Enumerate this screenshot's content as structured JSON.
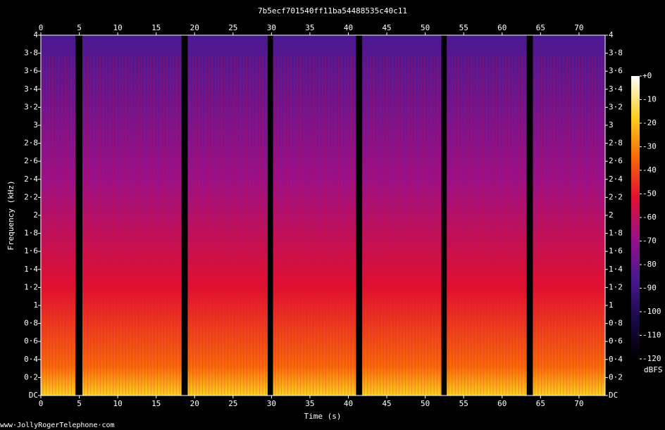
{
  "chart_data": {
    "type": "spectrogram",
    "title": "7b5ecf701540ff11ba54488535c40c11",
    "x_label": "Time (s)",
    "y_label": "Frequency (kHz)",
    "xlim": [
      0,
      73.4
    ],
    "xticks": [
      0,
      5,
      10,
      15,
      20,
      25,
      30,
      35,
      40,
      45,
      50,
      55,
      60,
      65,
      70
    ],
    "ylim": [
      0,
      4
    ],
    "yticks": [
      {
        "value": 0,
        "label": "DC"
      },
      {
        "value": 0.2,
        "label": "0·2"
      },
      {
        "value": 0.4,
        "label": "0·4"
      },
      {
        "value": 0.6,
        "label": "0·6"
      },
      {
        "value": 0.8,
        "label": "0·8"
      },
      1,
      {
        "value": 1.2,
        "label": "1·2"
      },
      {
        "value": 1.4,
        "label": "1·4"
      },
      {
        "value": 1.6,
        "label": "1·6"
      },
      {
        "value": 1.8,
        "label": "1·8"
      },
      2,
      {
        "value": 2.2,
        "label": "2·2"
      },
      {
        "value": 2.4,
        "label": "2·4"
      },
      {
        "value": 2.6,
        "label": "2·6"
      },
      {
        "value": 2.8,
        "label": "2·8"
      },
      3,
      {
        "value": 3.2,
        "label": "3·2"
      },
      {
        "value": 3.4,
        "label": "3·4"
      },
      {
        "value": 3.6,
        "label": "3·6"
      },
      {
        "value": 3.8,
        "label": "3·8"
      },
      4
    ],
    "segments": [
      {
        "start": 0,
        "end": 4.5
      },
      {
        "start": 5.4,
        "end": 18.3
      },
      {
        "start": 19.1,
        "end": 29.5
      },
      {
        "start": 30.2,
        "end": 41.0
      },
      {
        "start": 41.8,
        "end": 52.1
      },
      {
        "start": 52.8,
        "end": 63.2
      },
      {
        "start": 64.0,
        "end": 73.4
      }
    ],
    "colorbar": {
      "label": "dBFS",
      "lim": [
        -120,
        0
      ],
      "ticks": [
        {
          "value": 0,
          "label": "+0"
        },
        -10,
        -20,
        -30,
        -40,
        -50,
        -60,
        -70,
        -80,
        -90,
        -100,
        -110,
        -120
      ]
    },
    "colorscale": [
      "#000000",
      "#1a0a4a",
      "#4a1890",
      "#9a1088",
      "#e01030",
      "#f86a0a",
      "#fad020",
      "#ffffff"
    ]
  },
  "footer": "www·JollyRogerTelephone·com"
}
